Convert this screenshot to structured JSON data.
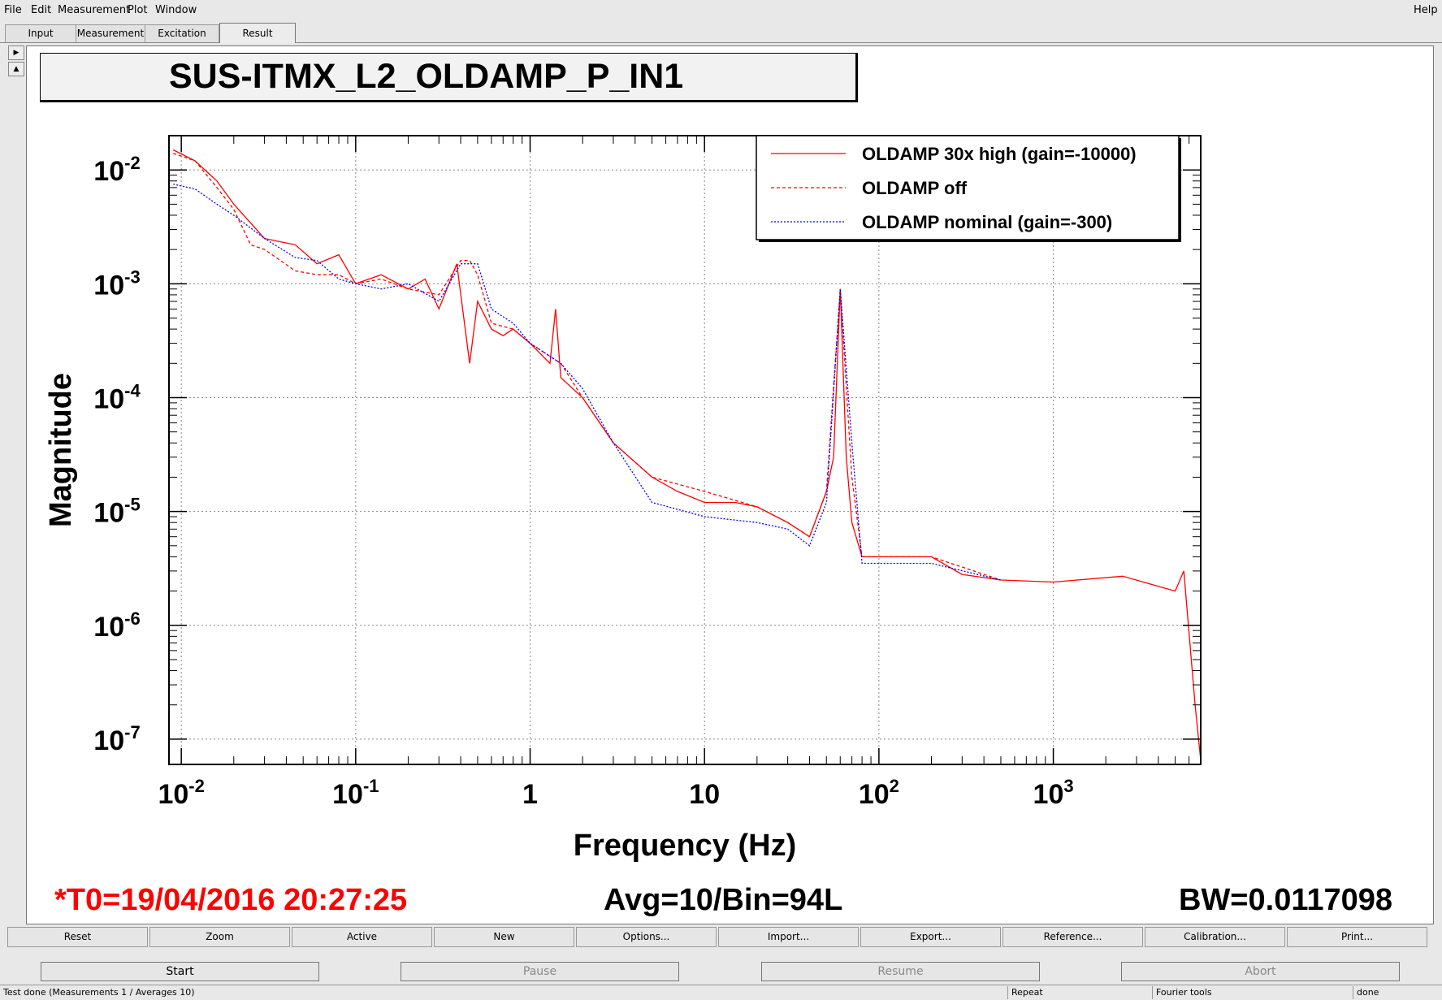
{
  "menu": {
    "file": "File",
    "edit": "Edit",
    "measurement": "Measurement",
    "plot": "Plot",
    "window": "Window",
    "help": "Help"
  },
  "tabs": [
    "Input",
    "Measurement",
    "Excitation",
    "Result"
  ],
  "active_tab": "Result",
  "plot": {
    "title": "SUS-ITMX_L2_OLDAMP_P_IN1",
    "footer_left": "*T0=19/04/2016 20:27:25",
    "footer_mid": "Avg=10/Bin=94L",
    "footer_right": "BW=0.0117098",
    "colors": {
      "red": "#ff0000",
      "blue": "#0000ff",
      "footer_red": "#ff0000"
    }
  },
  "chart_data": {
    "type": "line",
    "title": "SUS-ITMX_L2_OLDAMP_P_IN1",
    "xlabel": "Frequency (Hz)",
    "ylabel": "Magnitude",
    "xscale": "log",
    "yscale": "log",
    "xlim": [
      0.0085,
      7000
    ],
    "ylim": [
      6e-08,
      0.02
    ],
    "grid": true,
    "legend_position": "top-right",
    "x_ticks": [
      "10^-2",
      "10^-1",
      "1",
      "10",
      "10^2",
      "10^3"
    ],
    "y_ticks": [
      "10^-2",
      "10^-3",
      "10^-4",
      "10^-5",
      "10^-6",
      "10^-7"
    ],
    "series": [
      {
        "name": "OLDAMP 30x high (gain=-10000)",
        "color": "#ff0000",
        "style": "solid",
        "x": [
          0.009,
          0.012,
          0.016,
          0.02,
          0.03,
          0.045,
          0.06,
          0.08,
          0.1,
          0.14,
          0.2,
          0.25,
          0.3,
          0.38,
          0.45,
          0.5,
          0.6,
          0.7,
          0.8,
          1.0,
          1.3,
          1.4,
          1.5,
          2.0,
          3.0,
          5.0,
          7.0,
          10,
          15,
          20,
          30,
          40,
          50,
          55,
          60,
          65,
          70,
          80,
          100,
          150,
          200,
          300,
          500,
          1000,
          2500,
          4000,
          5000,
          5600,
          6500,
          7000
        ],
        "y": [
          0.015,
          0.012,
          0.008,
          0.005,
          0.0025,
          0.0022,
          0.0015,
          0.0018,
          0.001,
          0.0012,
          0.0009,
          0.0011,
          0.0006,
          0.0015,
          0.0002,
          0.0007,
          0.0004,
          0.00035,
          0.0004,
          0.0003,
          0.0002,
          0.0006,
          0.00015,
          0.0001,
          4e-05,
          2e-05,
          1.5e-05,
          1.2e-05,
          1.2e-05,
          1.1e-05,
          8e-06,
          6e-06,
          1.5e-05,
          3e-05,
          0.0009,
          3e-05,
          8e-06,
          4e-06,
          4e-06,
          4e-06,
          4e-06,
          2.8e-06,
          2.5e-06,
          2.4e-06,
          2.7e-06,
          2.2e-06,
          2e-06,
          3e-06,
          2e-07,
          6.5e-08
        ]
      },
      {
        "name": "OLDAMP off",
        "color": "#ff0000",
        "style": "dashed",
        "x": [
          0.009,
          0.012,
          0.016,
          0.02,
          0.025,
          0.03,
          0.045,
          0.06,
          0.08,
          0.1,
          0.14,
          0.2,
          0.3,
          0.4,
          0.45,
          0.5,
          0.6,
          0.8,
          1.0,
          1.5,
          2.0,
          3.0,
          5.0,
          10,
          20,
          30,
          40,
          50,
          60,
          70,
          80,
          100,
          200,
          500
        ],
        "y": [
          0.014,
          0.012,
          0.007,
          0.0045,
          0.0022,
          0.002,
          0.0013,
          0.0012,
          0.0012,
          0.001,
          0.0011,
          0.0009,
          0.0008,
          0.0016,
          0.0016,
          0.0012,
          0.00045,
          0.0004,
          0.0003,
          0.0002,
          0.0001,
          4e-05,
          2e-05,
          1.5e-05,
          1.1e-05,
          8e-06,
          6e-06,
          1.5e-05,
          0.0009,
          2e-05,
          4e-06,
          4e-06,
          4e-06,
          2.5e-06
        ]
      },
      {
        "name": "OLDAMP nominal (gain=-300)",
        "color": "#0000ff",
        "style": "dotted",
        "x": [
          0.009,
          0.012,
          0.016,
          0.02,
          0.03,
          0.045,
          0.06,
          0.08,
          0.1,
          0.14,
          0.2,
          0.3,
          0.4,
          0.5,
          0.6,
          0.8,
          1.0,
          1.5,
          2.0,
          3.0,
          5.0,
          10,
          20,
          30,
          40,
          50,
          60,
          70,
          80,
          100,
          200,
          500
        ],
        "y": [
          0.0075,
          0.0068,
          0.005,
          0.004,
          0.0025,
          0.0017,
          0.0016,
          0.0011,
          0.001,
          0.0009,
          0.001,
          0.0007,
          0.0015,
          0.0015,
          0.0006,
          0.00045,
          0.0003,
          0.0002,
          0.00012,
          4e-05,
          1.2e-05,
          9e-06,
          8e-06,
          7e-06,
          5e-06,
          1.2e-05,
          0.0009,
          4e-05,
          3.5e-06,
          3.5e-06,
          3.5e-06,
          2.5e-06
        ]
      }
    ]
  },
  "buttons": [
    "Reset",
    "Zoom",
    "Active",
    "New",
    "Options...",
    "Import...",
    "Export...",
    "Reference...",
    "Calibration...",
    "Print..."
  ],
  "actions": {
    "start": "Start",
    "pause": "Pause",
    "resume": "Resume",
    "abort": "Abort"
  },
  "status": {
    "message": "Test done (Measurements 1 / Averages 10)",
    "repeat": "Repeat",
    "tools": "Fourier tools",
    "state": "done"
  }
}
